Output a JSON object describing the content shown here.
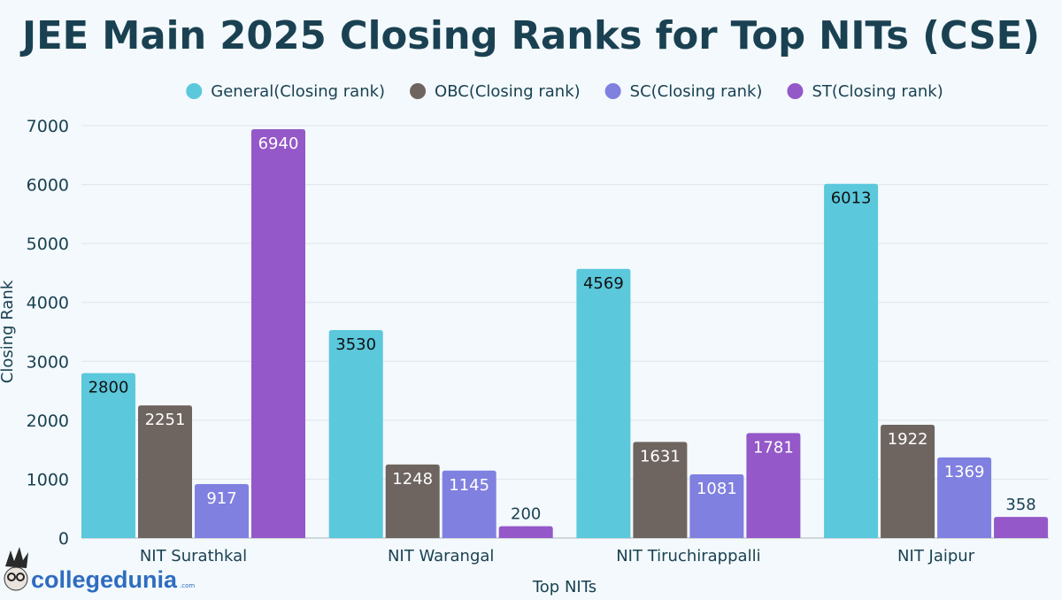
{
  "chart_data": {
    "type": "bar",
    "title": "JEE Main 2025 Closing Ranks for Top NITs (CSE)",
    "xlabel": "Top NITs",
    "ylabel": "Closing Rank",
    "ylim": [
      0,
      7000
    ],
    "yticks": [
      "0",
      "1000",
      "2000",
      "3000",
      "4000",
      "5000",
      "6000",
      "7000"
    ],
    "grid": true,
    "legend_position": "top",
    "categories": [
      "NIT Surathkal",
      "NIT Warangal",
      "NIT Tiruchirappalli",
      "NIT Jaipur"
    ],
    "series": [
      {
        "name": "General(Closing rank)",
        "color": "#5bc8dc",
        "values": [
          2800,
          3530,
          4569,
          6013
        ]
      },
      {
        "name": "OBC(Closing rank)",
        "color": "#6e6560",
        "values": [
          2251,
          1248,
          1631,
          1922
        ]
      },
      {
        "name": "SC(Closing rank)",
        "color": "#8080e0",
        "values": [
          917,
          1145,
          1081,
          1369
        ]
      },
      {
        "name": "ST(Closing rank)",
        "color": "#9458c8",
        "values": [
          6940,
          200,
          1781,
          358
        ]
      }
    ]
  },
  "branding": {
    "logo_text": "collegedunia",
    "logo_suffix": ".com"
  }
}
